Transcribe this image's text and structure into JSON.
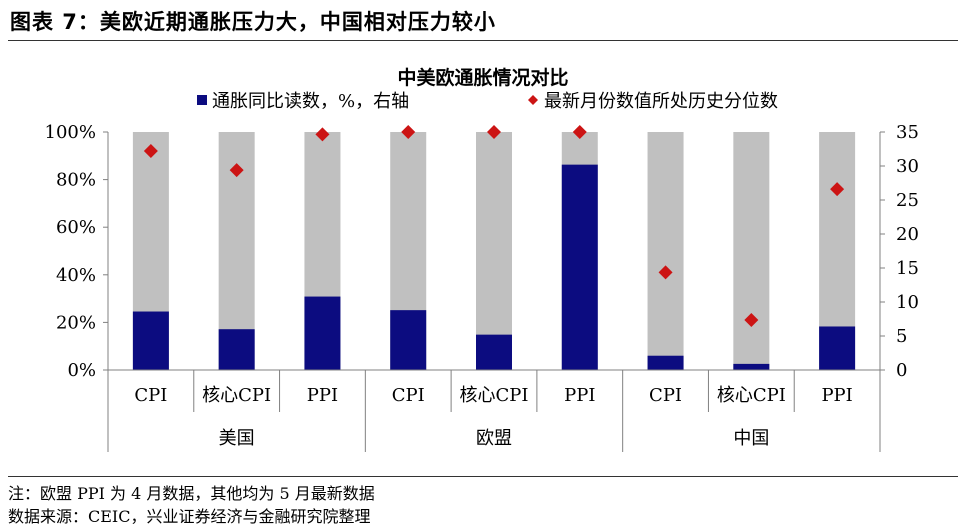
{
  "figure_title": "图表 7：美欧近期通胀压力大，中国相对压力较小",
  "note": "注：欧盟 PPI 为 4 月数据，其他均为 5 月最新数据",
  "source": "数据来源：CEIC，兴业证券经济与金融研究院整理",
  "colors": {
    "bar": "#0c0c80",
    "background_bar": "#c0c0c0",
    "marker": "#cc1414",
    "axis": "#808080"
  },
  "chart_data": {
    "type": "bar",
    "title": "中美欧通胀情况对比",
    "legend": [
      {
        "label": "通胀同比读数，%，右轴",
        "marker": "square"
      },
      {
        "label": "最新月份数值所处历史分位数",
        "marker": "diamond"
      }
    ],
    "legend_placement": "top",
    "groups": [
      "美国",
      "欧盟",
      "中国"
    ],
    "categories": [
      "CPI",
      "核心CPI",
      "PPI",
      "CPI",
      "核心CPI",
      "PPI",
      "CPI",
      "核心CPI",
      "PPI"
    ],
    "group_index": [
      0,
      0,
      0,
      1,
      1,
      1,
      2,
      2,
      2
    ],
    "left_axis": {
      "ticks": [
        "0%",
        "20%",
        "40%",
        "60%",
        "80%",
        "100%"
      ],
      "ylim": [
        0,
        100
      ]
    },
    "right_axis": {
      "ticks": [
        "0",
        "5",
        "10",
        "15",
        "20",
        "25",
        "30",
        "35"
      ],
      "ylim": [
        0,
        35
      ]
    },
    "series": [
      {
        "name": "通胀同比读数，%，右轴",
        "axis": "right",
        "kind": "bar",
        "values": [
          8.6,
          6.0,
          10.8,
          8.8,
          5.2,
          30.2,
          2.1,
          0.9,
          6.4
        ]
      },
      {
        "name": "最新月份数值所处历史分位数",
        "axis": "left",
        "kind": "scatter",
        "values": [
          92,
          84,
          99,
          100,
          100,
          100,
          41,
          21,
          76
        ]
      },
      {
        "name": "背景柱",
        "axis": "left",
        "kind": "background",
        "values": [
          100,
          100,
          100,
          100,
          100,
          100,
          100,
          100,
          100
        ]
      }
    ]
  }
}
